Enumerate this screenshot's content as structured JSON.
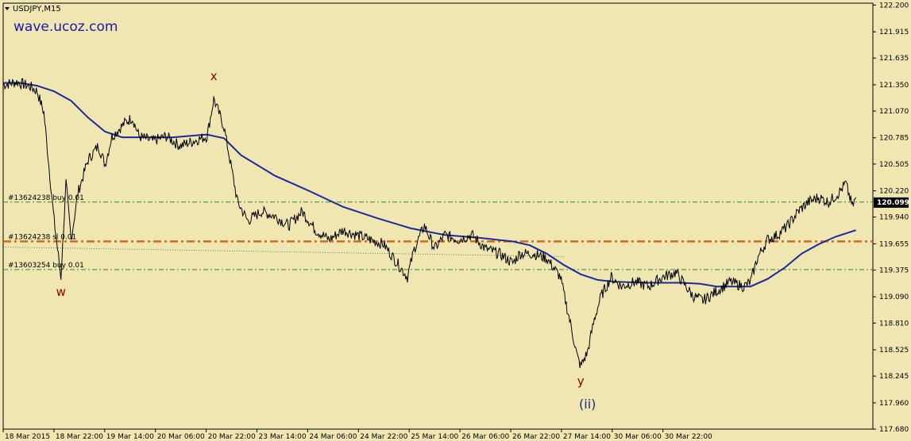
{
  "chart_data": {
    "type": "line",
    "symbol": "USDJPY,M15",
    "watermark": "wave.ucoz.com",
    "ylim": [
      117.68,
      122.22
    ],
    "y_ticks": [
      "122.200",
      "121.915",
      "121.635",
      "121.350",
      "121.070",
      "120.785",
      "120.505",
      "120.220",
      "119.940",
      "119.655",
      "119.375",
      "119.090",
      "118.810",
      "118.525",
      "118.245",
      "117.960",
      "117.680"
    ],
    "x_ticks": [
      "18 Mar 2015",
      "18 Mar 22:00",
      "19 Mar 14:00",
      "20 Mar 06:00",
      "20 Mar 22:00",
      "23 Mar 14:00",
      "24 Mar 06:00",
      "24 Mar 22:00",
      "25 Mar 14:00",
      "26 Mar 06:00",
      "26 Mar 22:00",
      "27 Mar 14:00",
      "30 Mar 06:00",
      "30 Mar 22:00"
    ],
    "current_price": "120.099",
    "price_series": [
      [
        0,
        121.35
      ],
      [
        0.4,
        121.38
      ],
      [
        0.8,
        121.33
      ],
      [
        1.0,
        121.28
      ],
      [
        1.2,
        121.05
      ],
      [
        1.5,
        119.9
      ],
      [
        1.7,
        119.3
      ],
      [
        1.85,
        120.3
      ],
      [
        2.0,
        119.7
      ],
      [
        2.2,
        120.2
      ],
      [
        2.5,
        120.55
      ],
      [
        2.8,
        120.7
      ],
      [
        3.0,
        120.5
      ],
      [
        3.2,
        120.8
      ],
      [
        3.6,
        120.95
      ],
      [
        3.8,
        121.0
      ],
      [
        4.0,
        120.8
      ],
      [
        4.4,
        120.75
      ],
      [
        4.8,
        120.8
      ],
      [
        5.2,
        120.7
      ],
      [
        5.6,
        120.75
      ],
      [
        6.0,
        120.8
      ],
      [
        6.2,
        121.2
      ],
      [
        6.5,
        120.9
      ],
      [
        6.7,
        120.5
      ],
      [
        6.9,
        120.1
      ],
      [
        7.2,
        119.9
      ],
      [
        7.6,
        120.0
      ],
      [
        8.0,
        119.95
      ],
      [
        8.4,
        119.85
      ],
      [
        8.8,
        120.0
      ],
      [
        9.2,
        119.8
      ],
      [
        9.6,
        119.7
      ],
      [
        10.0,
        119.8
      ],
      [
        10.4,
        119.75
      ],
      [
        10.8,
        119.7
      ],
      [
        11.2,
        119.65
      ],
      [
        11.6,
        119.45
      ],
      [
        11.9,
        119.3
      ],
      [
        12.1,
        119.6
      ],
      [
        12.4,
        119.85
      ],
      [
        12.7,
        119.6
      ],
      [
        13.0,
        119.75
      ],
      [
        13.4,
        119.7
      ],
      [
        13.8,
        119.75
      ],
      [
        14.2,
        119.6
      ],
      [
        14.6,
        119.55
      ],
      [
        15.0,
        119.45
      ],
      [
        15.2,
        119.55
      ],
      [
        15.6,
        119.55
      ],
      [
        16.0,
        119.5
      ],
      [
        16.4,
        119.3
      ],
      [
        16.7,
        118.8
      ],
      [
        16.9,
        118.45
      ],
      [
        17.0,
        118.35
      ],
      [
        17.2,
        118.5
      ],
      [
        17.4,
        118.85
      ],
      [
        17.6,
        119.1
      ],
      [
        17.9,
        119.3
      ],
      [
        18.2,
        119.2
      ],
      [
        18.6,
        119.25
      ],
      [
        19.0,
        119.2
      ],
      [
        19.4,
        119.3
      ],
      [
        19.8,
        119.35
      ],
      [
        20.0,
        119.25
      ],
      [
        20.3,
        119.1
      ],
      [
        20.6,
        119.05
      ],
      [
        21.0,
        119.15
      ],
      [
        21.4,
        119.25
      ],
      [
        21.8,
        119.2
      ],
      [
        22.0,
        119.25
      ],
      [
        22.2,
        119.5
      ],
      [
        22.5,
        119.7
      ],
      [
        22.8,
        119.75
      ],
      [
        23.1,
        119.85
      ],
      [
        23.4,
        120.0
      ],
      [
        23.7,
        120.1
      ],
      [
        24.0,
        120.15
      ],
      [
        24.3,
        120.1
      ],
      [
        24.6,
        120.2
      ],
      [
        24.8,
        120.3
      ],
      [
        25.0,
        120.05
      ],
      [
        25.1,
        120.15
      ]
    ],
    "ma_series": [
      [
        0,
        121.37
      ],
      [
        0.5,
        121.37
      ],
      [
        1.0,
        121.34
      ],
      [
        1.5,
        121.28
      ],
      [
        2.0,
        121.18
      ],
      [
        2.5,
        121.0
      ],
      [
        3.0,
        120.85
      ],
      [
        3.5,
        120.79
      ],
      [
        4.0,
        120.79
      ],
      [
        5.0,
        120.79
      ],
      [
        6.0,
        120.82
      ],
      [
        6.5,
        120.78
      ],
      [
        7.0,
        120.6
      ],
      [
        8.0,
        120.38
      ],
      [
        9.0,
        120.22
      ],
      [
        10.0,
        120.05
      ],
      [
        11.0,
        119.93
      ],
      [
        12.0,
        119.82
      ],
      [
        13.0,
        119.75
      ],
      [
        14.0,
        119.72
      ],
      [
        15.0,
        119.68
      ],
      [
        15.5,
        119.64
      ],
      [
        16.0,
        119.55
      ],
      [
        16.5,
        119.43
      ],
      [
        17.0,
        119.33
      ],
      [
        17.5,
        119.27
      ],
      [
        18.0,
        119.25
      ],
      [
        19.0,
        119.24
      ],
      [
        20.0,
        119.24
      ],
      [
        20.5,
        119.23
      ],
      [
        21.0,
        119.2
      ],
      [
        22.0,
        119.2
      ],
      [
        22.5,
        119.28
      ],
      [
        23.0,
        119.4
      ],
      [
        23.5,
        119.55
      ],
      [
        24.0,
        119.65
      ],
      [
        24.5,
        119.73
      ],
      [
        25.1,
        119.8
      ]
    ],
    "x_domain": [
      0,
      25.6
    ],
    "order_lines": [
      {
        "label": "#13624238 buy 0.01",
        "price": 120.1,
        "style": "green"
      },
      {
        "label": "#13624238 sl 0.01",
        "price": 119.68,
        "style": "orange"
      },
      {
        "label": "#13603254 buy 0.01",
        "price": 119.38,
        "style": "green"
      }
    ],
    "wave_labels": [
      {
        "text": "x",
        "x": 6.2,
        "y": 121.4,
        "color": "red"
      },
      {
        "text": "w",
        "x": 1.7,
        "y": 119.1,
        "color": "red"
      },
      {
        "text": "y",
        "x": 17.0,
        "y": 118.15,
        "color": "red"
      },
      {
        "text": "(ii)",
        "x": 17.2,
        "y": 117.9,
        "color": "blue"
      }
    ],
    "colors": {
      "background": "#f0e6b2",
      "price": "#000000",
      "ma": "#1a2a9a",
      "green_line": "#2e8b2e",
      "sl_line": "#d2691e",
      "wave_red": "#8b0000",
      "wave_blue": "#1a2a8a"
    }
  }
}
